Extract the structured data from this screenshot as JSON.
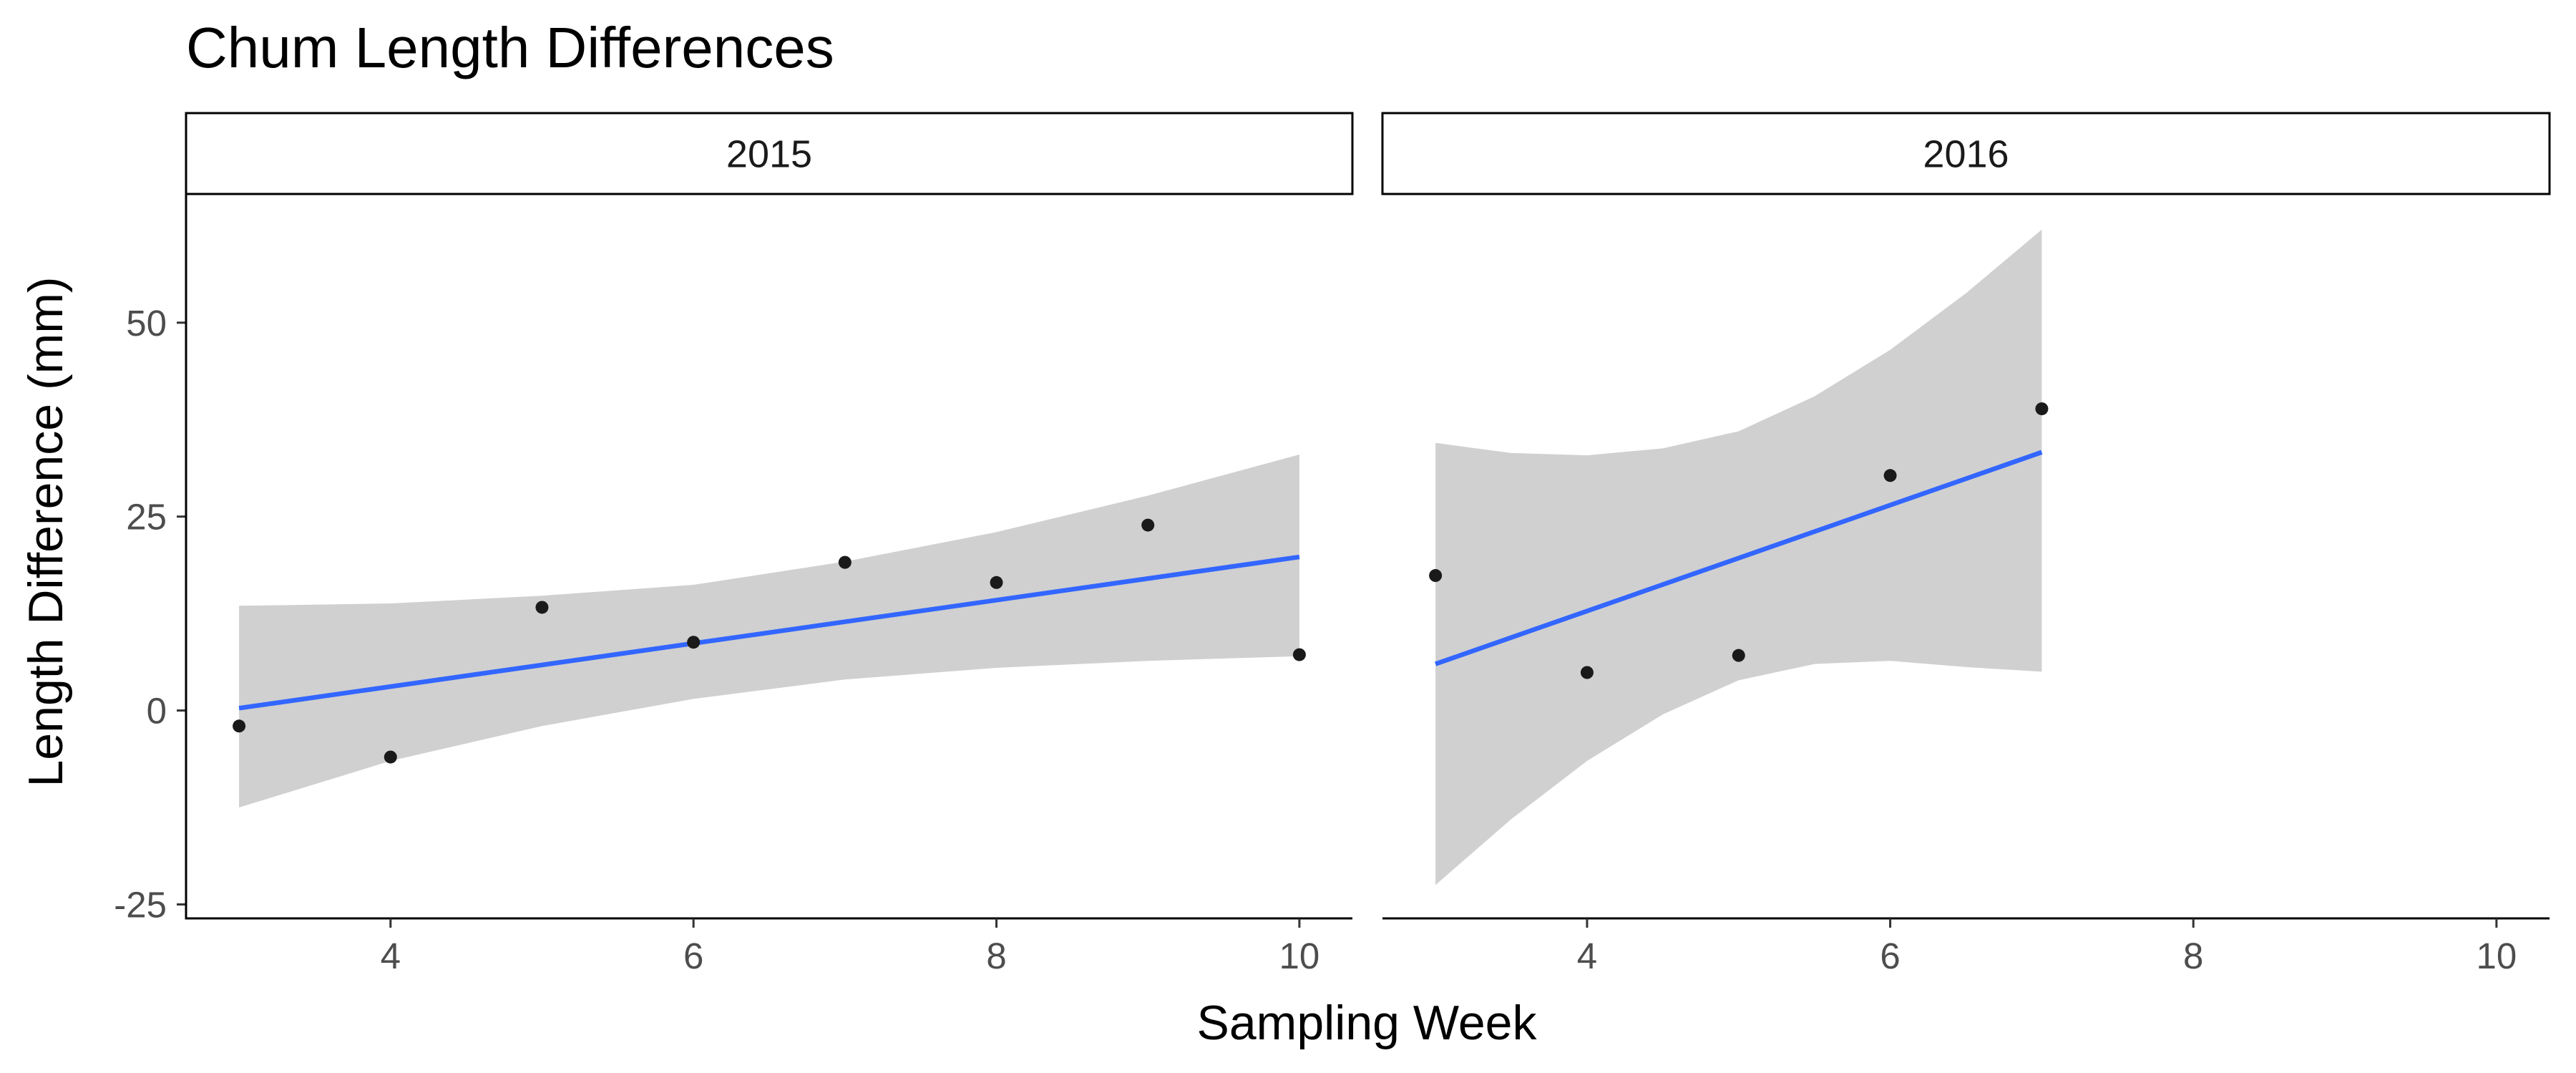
{
  "chart_data": {
    "type": "scatter",
    "title": "Chum Length Differences",
    "xlabel": "Sampling Week",
    "ylabel": "Length Difference (mm)",
    "xlim": [
      2.65,
      10.35
    ],
    "ylim": [
      -26.8,
      66.5
    ],
    "x_ticks": [
      4,
      6,
      8,
      10
    ],
    "x_tick_labels": [
      "4",
      "6",
      "8",
      "10"
    ],
    "y_ticks": [
      -25,
      0,
      25,
      50
    ],
    "y_tick_labels": [
      "-25",
      "0",
      "25",
      "50"
    ],
    "grid": false,
    "panels": [
      {
        "label": "2015",
        "points": [
          {
            "x": 3,
            "y": -2
          },
          {
            "x": 4,
            "y": -6
          },
          {
            "x": 5,
            "y": 13.3
          },
          {
            "x": 6,
            "y": 8.8
          },
          {
            "x": 7,
            "y": 19.1
          },
          {
            "x": 8,
            "y": 16.5
          },
          {
            "x": 9,
            "y": 23.9
          },
          {
            "x": 10,
            "y": 7.2
          }
        ],
        "fit_line": {
          "x": [
            3,
            10
          ],
          "y": [
            0.3,
            19.8
          ]
        },
        "ci_band": {
          "x": [
            3,
            4,
            5,
            6,
            7,
            8,
            9,
            10
          ],
          "lower": [
            -12.5,
            -6.5,
            -2.0,
            1.5,
            4.0,
            5.5,
            6.4,
            7.0
          ],
          "upper": [
            13.5,
            13.8,
            14.8,
            16.2,
            19.2,
            23.0,
            27.7,
            33.0
          ]
        }
      },
      {
        "label": "2016",
        "points": [
          {
            "x": 3,
            "y": 17.4
          },
          {
            "x": 4,
            "y": 4.9
          },
          {
            "x": 5,
            "y": 7.1
          },
          {
            "x": 6,
            "y": 30.3
          },
          {
            "x": 7,
            "y": 38.9
          }
        ],
        "fit_line": {
          "x": [
            3,
            7
          ],
          "y": [
            6.0,
            33.3
          ]
        },
        "ci_band": {
          "x": [
            3,
            3.5,
            4,
            4.5,
            5,
            5.5,
            6,
            6.5,
            7
          ],
          "lower": [
            -22.5,
            -14.0,
            -6.5,
            -0.5,
            3.9,
            6.0,
            6.4,
            5.6,
            5.0
          ],
          "upper": [
            34.5,
            33.2,
            32.9,
            33.8,
            36.0,
            40.5,
            46.5,
            53.8,
            62.0
          ]
        }
      }
    ],
    "colors": {
      "fit_line": "#3366FF",
      "ci_band": "#D0D0D0",
      "point": "#1a1a1a"
    }
  }
}
